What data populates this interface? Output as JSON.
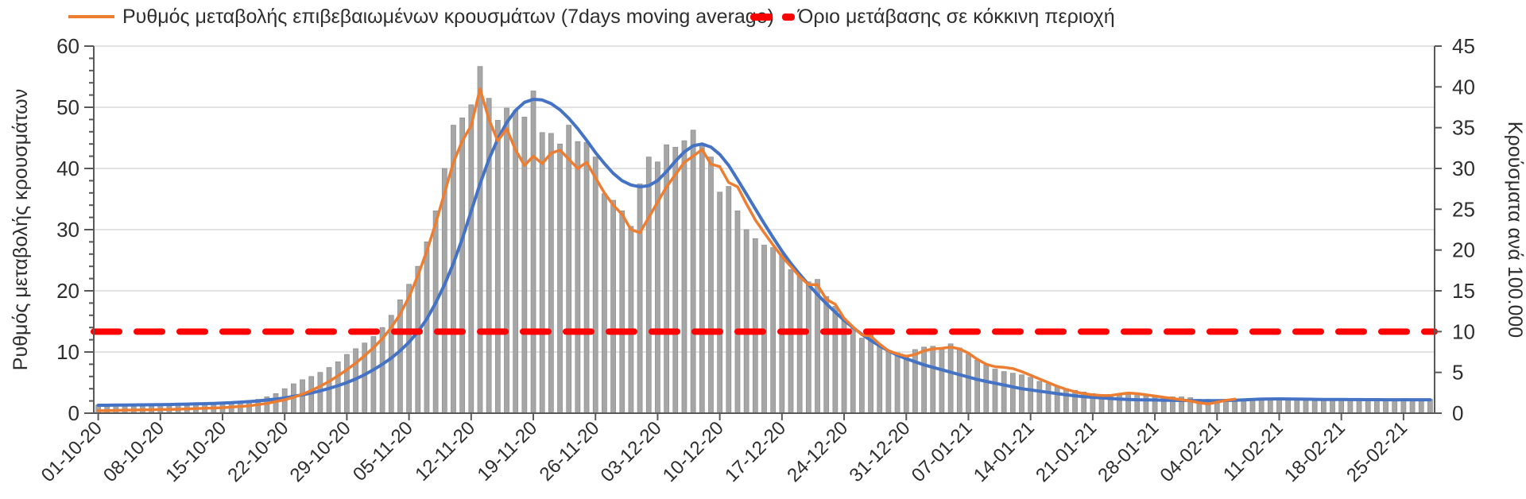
{
  "chart_data": {
    "type": "combo",
    "title": "",
    "grid": true,
    "legend": {
      "position": "top",
      "items": [
        {
          "label": "Ρυθμός μεταβολής επιβεβαιωμένων κρουσμάτων (7days moving average)",
          "marker": "line",
          "color": "#ED7D31"
        },
        {
          "label": "Όριο μετάβασης σε κόκκινη περιοχή",
          "marker": "dashes",
          "color": "#FF0000"
        }
      ]
    },
    "axes": {
      "left": {
        "title": "Ρυθμός μεταβολής κρουσμάτων",
        "min": 0,
        "max": 60,
        "ticks": [
          0,
          10,
          20,
          30,
          40,
          50,
          60
        ],
        "minor_step": 2
      },
      "right": {
        "title": "Κρούσματα ανά 100.000",
        "min": 0,
        "max": 45,
        "ticks": [
          0,
          5,
          10,
          15,
          20,
          25,
          30,
          35,
          40,
          45
        ]
      }
    },
    "x": {
      "n_points": 151,
      "days_between_ticks": 7,
      "tick_labels": [
        "01-10-20",
        "08-10-20",
        "15-10-20",
        "22-10-20",
        "29-10-20",
        "05-11-20",
        "12-11-20",
        "19-11-20",
        "26-11-20",
        "03-12-20",
        "10-12-20",
        "17-12-20",
        "24-12-20",
        "31-12-20",
        "07-01-21",
        "14-01-21",
        "21-01-21",
        "28-01-21",
        "04-02-21",
        "11-02-21",
        "18-02-21",
        "25-02-21"
      ]
    },
    "series": [
      {
        "name": "daily-cases-per-100000",
        "type": "bar",
        "axis": "right",
        "color": "#A6A6A6",
        "stroke": "#8f8f8f",
        "values": [
          1.0,
          1.1,
          1.0,
          0.9,
          1.1,
          1.0,
          0.9,
          1.1,
          1.1,
          1.1,
          1.0,
          1.1,
          1.2,
          1.1,
          1.3,
          1.2,
          1.4,
          1.3,
          1.7,
          2.0,
          2.4,
          3.0,
          3.6,
          4.1,
          4.5,
          5.0,
          5.6,
          6.3,
          7.2,
          7.9,
          8.6,
          9.4,
          10.5,
          12.0,
          13.9,
          15.8,
          18.0,
          21.0,
          24.8,
          30.0,
          35.3,
          36.2,
          37.8,
          42.5,
          38.6,
          35.9,
          37.4,
          37.1,
          36.3,
          39.5,
          34.4,
          34.3,
          33.0,
          35.3,
          33.3,
          33.2,
          31.4,
          26.9,
          26.1,
          24.8,
          22.9,
          28.1,
          31.4,
          30.8,
          32.9,
          32.6,
          33.4,
          34.7,
          33.0,
          31.4,
          27.1,
          27.8,
          24.8,
          22.5,
          21.4,
          20.6,
          20.3,
          19.5,
          17.6,
          16.9,
          16.1,
          16.4,
          14.3,
          13.1,
          11.6,
          10.4,
          9.2,
          9.6,
          8.4,
          7.7,
          7.4,
          7.0,
          7.8,
          8.1,
          8.2,
          7.9,
          8.5,
          8.0,
          7.2,
          6.5,
          5.9,
          5.4,
          5.1,
          4.9,
          4.7,
          4.4,
          3.9,
          3.6,
          3.3,
          3.0,
          2.8,
          2.6,
          2.4,
          2.3,
          2.2,
          2.3,
          2.3,
          2.3,
          2.1,
          2.0,
          1.9,
          2.0,
          2.0,
          1.9,
          1.7,
          1.7,
          1.6,
          1.5,
          1.5,
          1.6,
          1.7,
          1.8,
          1.7,
          1.7,
          1.8,
          1.7,
          1.7,
          1.8,
          1.7,
          1.7,
          1.7,
          1.8,
          1.7,
          1.7,
          1.8,
          1.7,
          1.7,
          1.8,
          1.7,
          1.7,
          1.7
        ]
      },
      {
        "name": "Ρυθμός μεταβολής επιβεβαιωμένων κρουσμάτων (7days moving average)",
        "type": "line",
        "axis": "left",
        "color": "#ED7D31",
        "width": 3.5,
        "values": [
          0.4,
          0.4,
          0.45,
          0.5,
          0.5,
          0.55,
          0.55,
          0.6,
          0.6,
          0.65,
          0.7,
          0.75,
          0.8,
          0.85,
          0.9,
          1.0,
          1.1,
          1.2,
          1.4,
          1.6,
          1.9,
          2.2,
          2.6,
          3.1,
          3.7,
          4.4,
          5.2,
          6.1,
          7.1,
          8.2,
          9.4,
          10.7,
          12.2,
          14.0,
          16.2,
          19.0,
          22.5,
          26.5,
          31.0,
          36.0,
          41.0,
          44.5,
          47.0,
          53.0,
          48.0,
          44.5,
          46.5,
          43.0,
          40.5,
          42.0,
          40.8,
          42.5,
          43.0,
          41.5,
          40.0,
          41.0,
          38.5,
          36.0,
          34.0,
          32.5,
          30.0,
          29.5,
          32.0,
          34.5,
          37.0,
          39.0,
          41.0,
          42.0,
          43.1,
          40.7,
          40.3,
          37.7,
          37.0,
          34.2,
          31.6,
          29.5,
          27.5,
          25.6,
          24.0,
          22.3,
          21.0,
          21.0,
          18.6,
          17.8,
          15.5,
          14.1,
          12.8,
          12.6,
          11.3,
          10.2,
          9.7,
          9.3,
          9.6,
          10.2,
          10.5,
          10.6,
          10.8,
          10.5,
          9.8,
          8.8,
          8.0,
          7.6,
          7.5,
          7.3,
          6.8,
          6.2,
          5.6,
          5.0,
          4.4,
          3.9,
          3.5,
          3.2,
          3.0,
          2.9,
          2.9,
          3.1,
          3.3,
          3.2,
          3.0,
          2.8,
          2.6,
          2.4,
          2.2,
          2.0,
          1.7,
          1.5,
          1.8,
          2.1,
          2.3
        ]
      },
      {
        "name": "trend",
        "type": "line",
        "axis": "left",
        "color": "#4472C4",
        "width": 4,
        "values": [
          1.3,
          1.3,
          1.32,
          1.33,
          1.35,
          1.36,
          1.38,
          1.4,
          1.42,
          1.45,
          1.48,
          1.52,
          1.56,
          1.6,
          1.66,
          1.72,
          1.8,
          1.9,
          2.0,
          2.15,
          2.3,
          2.5,
          2.75,
          3.0,
          3.3,
          3.65,
          4.05,
          4.5,
          5.0,
          5.6,
          6.3,
          7.1,
          8.0,
          9.0,
          10.2,
          11.6,
          13.3,
          15.4,
          18.0,
          21.0,
          24.5,
          28.5,
          33.0,
          37.5,
          41.5,
          44.8,
          47.5,
          49.5,
          50.8,
          51.3,
          51.2,
          50.6,
          49.6,
          48.2,
          46.5,
          44.6,
          42.6,
          40.8,
          39.2,
          38.0,
          37.3,
          37.0,
          37.2,
          38.0,
          39.5,
          41.2,
          42.7,
          43.7,
          44.0,
          43.5,
          42.3,
          40.5,
          38.2,
          35.8,
          33.4,
          31.0,
          28.7,
          26.5,
          24.5,
          22.7,
          21.0,
          19.4,
          17.9,
          16.5,
          15.2,
          14.0,
          12.9,
          11.9,
          11.0,
          10.2,
          9.5,
          8.9,
          8.4,
          7.9,
          7.5,
          7.1,
          6.7,
          6.3,
          5.9,
          5.5,
          5.2,
          4.9,
          4.6,
          4.3,
          4.0,
          3.8,
          3.6,
          3.4,
          3.2,
          3.0,
          2.85,
          2.7,
          2.6,
          2.5,
          2.4,
          2.3,
          2.25,
          2.2,
          2.18,
          2.15,
          2.12,
          2.1,
          2.08,
          2.06,
          2.05,
          2.05,
          2.05,
          2.08,
          2.12,
          2.18,
          2.25,
          2.3,
          2.33,
          2.34,
          2.33,
          2.3,
          2.28,
          2.26,
          2.25,
          2.24,
          2.23,
          2.22,
          2.22,
          2.21,
          2.21,
          2.2,
          2.2,
          2.2,
          2.2,
          2.2,
          2.2
        ]
      },
      {
        "name": "Όριο μετάβασης σε κόκκινη περιοχή",
        "type": "threshold",
        "axis": "right",
        "color": "#FF0000",
        "width": 8,
        "dash": "32 22",
        "value": 10
      }
    ]
  },
  "style": {
    "gridline_color": "#D9D9D9",
    "axis_color": "#595959",
    "text_color": "#2e2e2e"
  }
}
